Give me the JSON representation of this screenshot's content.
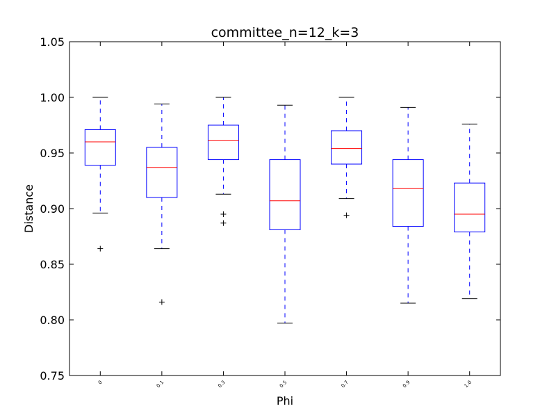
{
  "chart_data": {
    "type": "box",
    "title": "committee_n=12_k=3",
    "xlabel": "Phi",
    "ylabel": "Distance",
    "ylim": [
      0.75,
      1.05
    ],
    "yticks": [
      "0.75",
      "0.80",
      "0.85",
      "0.90",
      "0.95",
      "1.00",
      "1.05"
    ],
    "categories": [
      "0",
      "0.1",
      "0.3",
      "0.5",
      "0.7",
      "0.9",
      "1.0"
    ],
    "grid": false,
    "colors": {
      "box": "#0000ff",
      "median": "#ff0000",
      "cap": "#000000",
      "whisker": "#0000ff",
      "flier": "#000000"
    },
    "boxes": [
      {
        "category": "0",
        "whisker_low": 0.896,
        "q1": 0.939,
        "median": 0.96,
        "q3": 0.971,
        "whisker_high": 1.0,
        "fliers": [
          0.864
        ]
      },
      {
        "category": "0.1",
        "whisker_low": 0.864,
        "q1": 0.91,
        "median": 0.937,
        "q3": 0.955,
        "whisker_high": 0.994,
        "fliers": [
          0.816
        ]
      },
      {
        "category": "0.3",
        "whisker_low": 0.913,
        "q1": 0.944,
        "median": 0.961,
        "q3": 0.975,
        "whisker_high": 1.0,
        "fliers": [
          0.895,
          0.887
        ]
      },
      {
        "category": "0.5",
        "whisker_low": 0.797,
        "q1": 0.881,
        "median": 0.907,
        "q3": 0.944,
        "whisker_high": 0.993,
        "fliers": []
      },
      {
        "category": "0.7",
        "whisker_low": 0.909,
        "q1": 0.94,
        "median": 0.954,
        "q3": 0.97,
        "whisker_high": 1.0,
        "fliers": [
          0.894
        ]
      },
      {
        "category": "0.9",
        "whisker_low": 0.815,
        "q1": 0.884,
        "median": 0.918,
        "q3": 0.944,
        "whisker_high": 0.991,
        "fliers": []
      },
      {
        "category": "1.0",
        "whisker_low": 0.819,
        "q1": 0.879,
        "median": 0.895,
        "q3": 0.923,
        "whisker_high": 0.976,
        "fliers": []
      }
    ]
  }
}
